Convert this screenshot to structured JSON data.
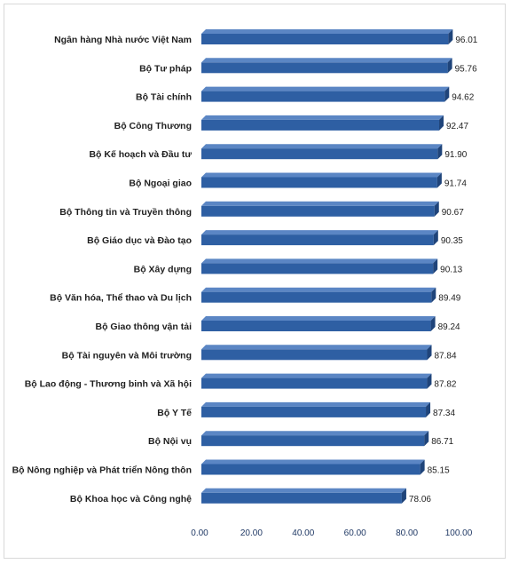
{
  "chart_data": {
    "type": "bar",
    "orientation": "horizontal",
    "title": "",
    "xlabel": "",
    "ylabel": "",
    "xlim": [
      0,
      100
    ],
    "ticks": [
      0,
      20,
      40,
      60,
      80,
      100
    ],
    "tick_labels": [
      "0.00",
      "20.00",
      "40.00",
      "60.00",
      "80.00",
      "100.00"
    ],
    "grid": false,
    "legend": "none",
    "bar_color": "#2e5fa3",
    "bar_side_color": "#1f447a",
    "bar_top_color": "#5b86c4",
    "categories": [
      "Ngân hàng Nhà nước Việt Nam",
      "Bộ Tư pháp",
      "Bộ Tài chính",
      "Bộ Công Thương",
      "Bộ Kế hoạch và Đầu tư",
      "Bộ Ngoại giao",
      "Bộ Thông tin và Truyền thông",
      "Bộ Giáo dục và Đào tạo",
      "Bộ Xây dựng",
      "Bộ Văn hóa, Thể thao và Du lịch",
      "Bộ Giao thông vận tải",
      "Bộ Tài nguyên và Môi trường",
      "Bộ Lao động - Thương binh và Xã hội",
      "Bộ Y Tế",
      "Bộ Nội vụ",
      "Bộ Nông nghiệp và Phát triển Nông thôn",
      "Bộ Khoa học và Công nghệ"
    ],
    "values": [
      96.01,
      95.76,
      94.62,
      92.47,
      91.9,
      91.74,
      90.67,
      90.35,
      90.13,
      89.49,
      89.24,
      87.84,
      87.82,
      87.34,
      86.71,
      85.15,
      78.06
    ],
    "value_labels": [
      "96.01",
      "95.76",
      "94.62",
      "92.47",
      "91.90",
      "91.74",
      "90.67",
      "90.35",
      "90.13",
      "89.49",
      "89.24",
      "87.84",
      "87.82",
      "87.34",
      "86.71",
      "85.15",
      "78.06"
    ]
  }
}
